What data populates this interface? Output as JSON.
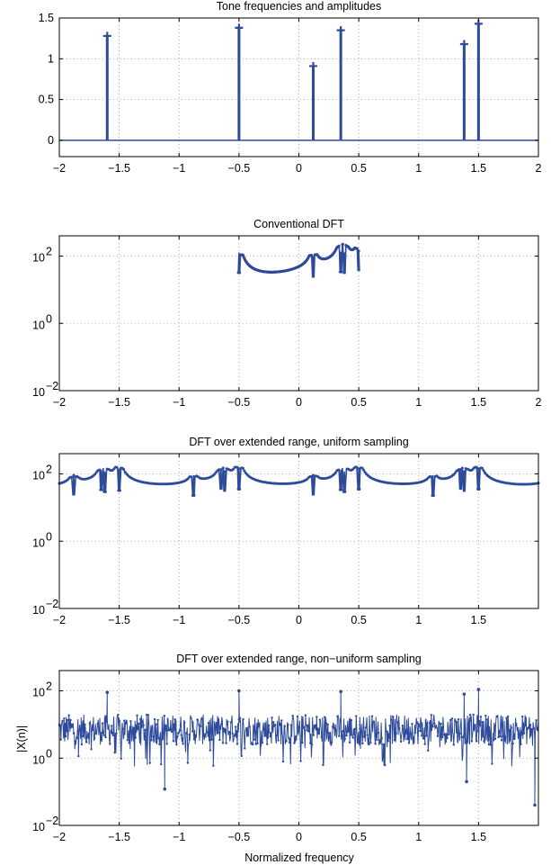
{
  "figure": {
    "xlabel": "Normalized frequency",
    "ylabel": "|X(n)|"
  },
  "colors": {
    "series": "#2e4b9b",
    "grid": "#9a9a9a",
    "axes": "#000000"
  },
  "chart_data": [
    {
      "type": "stem",
      "title": "Tone frequencies and amplitudes",
      "xlim": [
        -2,
        2
      ],
      "ylim": [
        -0.2,
        1.5
      ],
      "xticks": [
        -2,
        -1.5,
        -1,
        -0.5,
        0,
        0.5,
        1,
        1.5,
        2
      ],
      "xtick_labels": [
        "−2",
        "−1.5",
        "−1",
        "−0.5",
        "0",
        "0.5",
        "1",
        "1.5",
        "2"
      ],
      "yticks": [
        0,
        0.5,
        1,
        1.5
      ],
      "ytick_labels": [
        "0",
        "0.5",
        "1",
        "1.5"
      ],
      "grid": true,
      "x": [
        -1.6,
        -0.5,
        0.12,
        0.35,
        1.38,
        1.5
      ],
      "y": [
        1.28,
        1.38,
        0.91,
        1.35,
        1.18,
        1.43
      ]
    },
    {
      "type": "line",
      "title": "Conventional DFT",
      "yscale": "log",
      "xlim": [
        -2,
        2
      ],
      "ylim": [
        0.01,
        400
      ],
      "xticks": [
        -2,
        -1.5,
        -1,
        -0.5,
        0,
        0.5,
        1,
        1.5,
        2
      ],
      "xtick_labels": [
        "−2",
        "−1.5",
        "−1",
        "−0.5",
        "0",
        "0.5",
        "1",
        "1.5",
        "2"
      ],
      "yticks": [
        0.01,
        1,
        100
      ],
      "ytick_labels": [
        [
          "10",
          "−2"
        ],
        [
          "10",
          "0"
        ],
        [
          "10",
          "2"
        ]
      ],
      "grid": true,
      "x_range": [
        -0.5,
        0.5
      ],
      "peaks": [
        {
          "x": -0.5,
          "y": 128
        },
        {
          "x": 0.12,
          "y": 91
        },
        {
          "x": 0.35,
          "y": 135
        },
        {
          "x": 0.38,
          "y": 118
        },
        {
          "x": 0.5,
          "y": 143
        }
      ],
      "floor": 0.7
    },
    {
      "type": "line",
      "title": "DFT over extended range, uniform sampling",
      "yscale": "log",
      "xlim": [
        -2,
        2
      ],
      "ylim": [
        0.01,
        400
      ],
      "xticks": [
        -2,
        -1.5,
        -1,
        -0.5,
        0,
        0.5,
        1,
        1.5
      ],
      "xtick_labels": [
        "−2",
        "−1.5",
        "−1",
        "−0.5",
        "0",
        "0.5",
        "1",
        "1.5"
      ],
      "yticks": [
        0.01,
        1,
        100
      ],
      "ytick_labels": [
        [
          "10",
          "−2"
        ],
        [
          "10",
          "0"
        ],
        [
          "10",
          "2"
        ]
      ],
      "grid": true,
      "x_range": [
        -2,
        2
      ],
      "period": 1,
      "peaks": [
        {
          "x": -0.5,
          "y": 128
        },
        {
          "x": 0.12,
          "y": 91
        },
        {
          "x": 0.35,
          "y": 135
        },
        {
          "x": 0.38,
          "y": 118
        },
        {
          "x": 0.5,
          "y": 143
        }
      ],
      "floor": 0.35
    },
    {
      "type": "line",
      "title": "DFT over extended range, non−uniform sampling",
      "yscale": "log",
      "xlim": [
        -2,
        2
      ],
      "ylim": [
        0.01,
        400
      ],
      "xticks": [
        -2,
        -1.5,
        -1,
        -0.5,
        0,
        0.5,
        1,
        1.5
      ],
      "xtick_labels": [
        "−2",
        "−1.5",
        "−1",
        "−0.5",
        "0",
        "0.5",
        "1",
        "1.5"
      ],
      "yticks": [
        0.01,
        1,
        100
      ],
      "ytick_labels": [
        [
          "10",
          "−2"
        ],
        [
          "10",
          "0"
        ],
        [
          "10",
          "2"
        ]
      ],
      "grid": true,
      "x_range": [
        -2,
        2
      ],
      "noise_center": 7,
      "peaks": [
        {
          "x": -1.6,
          "y": 90
        },
        {
          "x": -0.5,
          "y": 100
        },
        {
          "x": 0.35,
          "y": 95
        },
        {
          "x": 1.38,
          "y": 80
        },
        {
          "x": 1.5,
          "y": 110
        }
      ],
      "dips": [
        {
          "x": -1.12,
          "y": 0.12
        },
        {
          "x": 1.4,
          "y": 0.2
        },
        {
          "x": 1.97,
          "y": 0.04
        }
      ]
    }
  ]
}
